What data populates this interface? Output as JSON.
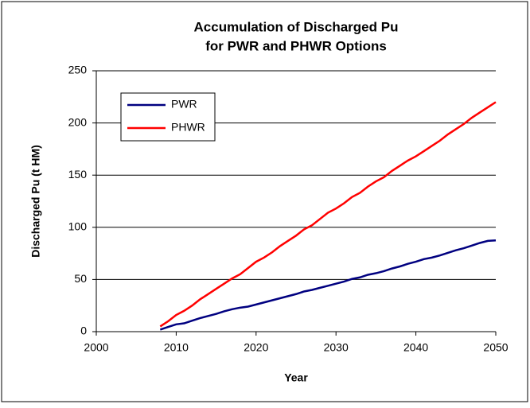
{
  "chart_data": {
    "type": "line",
    "title": [
      "Accumulation of Discharged Pu",
      "for PWR and PHWR Options"
    ],
    "x_label": "Year",
    "y_label": "Discharged Pu (t HM)",
    "x": [
      2008,
      2009,
      2010,
      2011,
      2012,
      2013,
      2014,
      2015,
      2016,
      2017,
      2018,
      2019,
      2020,
      2021,
      2022,
      2023,
      2024,
      2025,
      2026,
      2027,
      2028,
      2029,
      2030,
      2031,
      2032,
      2033,
      2034,
      2035,
      2036,
      2037,
      2038,
      2039,
      2040,
      2041,
      2042,
      2043,
      2044,
      2045,
      2046,
      2047,
      2048,
      2049,
      2050
    ],
    "series": [
      {
        "name": "PWR",
        "color": "#000080",
        "values": [
          2,
          4.5,
          7,
          8,
          10.5,
          13,
          15,
          17,
          19.5,
          21.5,
          23,
          24,
          26,
          28,
          30,
          32,
          34,
          36,
          38.5,
          40,
          42,
          44,
          46,
          48,
          50.5,
          52,
          54.5,
          56,
          58,
          60.5,
          62.5,
          65,
          67,
          69.5,
          71,
          73,
          75.5,
          78,
          80,
          82.5,
          85,
          87,
          87.5
        ]
      },
      {
        "name": "PHWR",
        "color": "#ff0000",
        "values": [
          5,
          10,
          16,
          20,
          25,
          31,
          36,
          41,
          46,
          51,
          55,
          61,
          67,
          71,
          76,
          82,
          87,
          92,
          98,
          102,
          108,
          114,
          118,
          123,
          129,
          133,
          139,
          144,
          148,
          154,
          159,
          164,
          168,
          173,
          178,
          183,
          189,
          194,
          199,
          205,
          210,
          215,
          220
        ]
      }
    ],
    "xlim": [
      2000,
      2050
    ],
    "xticks": [
      2000,
      2010,
      2020,
      2030,
      2040,
      2050
    ],
    "ylim": [
      0,
      250
    ],
    "yticks": [
      0,
      50,
      100,
      150,
      200,
      250
    ],
    "grid": true,
    "legend": "upper left"
  }
}
